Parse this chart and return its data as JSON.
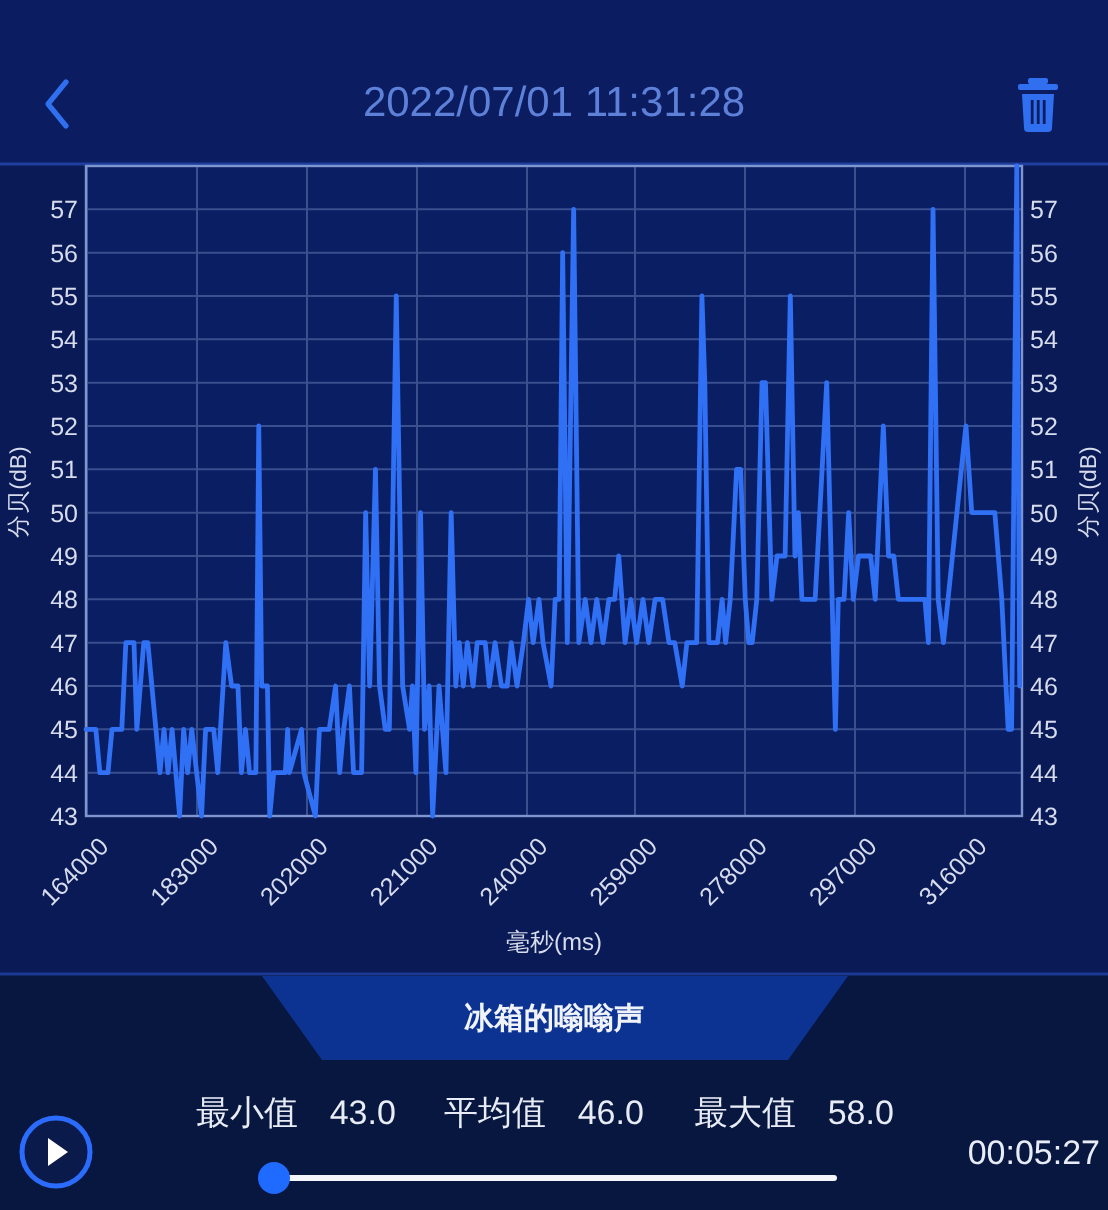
{
  "chart_data": {
    "type": "line",
    "title": "2022/07/01 11:31:28",
    "subtitle": "冰箱的嗡嗡声",
    "xlabel": "毫秒(ms)",
    "ylabel": "分贝(dB)",
    "y2label": "分贝(dB)",
    "x": [
      164000,
      165700,
      166400,
      167800,
      168500,
      170200,
      170900,
      172300,
      172800,
      174000,
      174700,
      176100,
      176800,
      177500,
      178200,
      178900,
      180200,
      180900,
      181600,
      182300,
      184000,
      184700,
      186100,
      186800,
      188200,
      189200,
      190300,
      190900,
      191600,
      192300,
      193400,
      193900,
      194400,
      195400,
      195800,
      196500,
      198500,
      198900,
      199200,
      201300,
      201700,
      203700,
      204400,
      206100,
      207200,
      207900,
      208600,
      209600,
      210300,
      211700,
      212400,
      213100,
      214100,
      214800,
      215800,
      216500,
      217700,
      218800,
      220000,
      220500,
      221100,
      221900,
      222600,
      223400,
      224000,
      225100,
      226300,
      227200,
      228000,
      228600,
      229300,
      230000,
      231000,
      231700,
      233100,
      233800,
      234800,
      235900,
      236900,
      237600,
      238600,
      239700,
      240600,
      241400,
      242400,
      243100,
      244500,
      245200,
      245900,
      246500,
      247300,
      248400,
      249300,
      250400,
      251400,
      252400,
      253500,
      254500,
      255500,
      256200,
      257300,
      258300,
      259300,
      260400,
      261400,
      262500,
      263800,
      264900,
      265900,
      267200,
      268000,
      269700,
      270600,
      271100,
      271800,
      273300,
      274100,
      274700,
      275500,
      276600,
      277300,
      278100,
      278700,
      279300,
      280100,
      281000,
      281600,
      282700,
      283600,
      285000,
      285900,
      286700,
      287300,
      287900,
      290200,
      292200,
      293700,
      294200,
      295200,
      296000,
      296800,
      297700,
      299800,
      300600,
      302000,
      302900,
      303800,
      304600,
      308100,
      309200,
      309800,
      310600,
      311500,
      312400,
      313200,
      315500,
      316300,
      317300,
      321300,
      322500,
      323600,
      324200,
      325100,
      325600
    ],
    "series": [
      {
        "color": "#3070f5",
        "values": [
          45,
          45,
          44,
          44,
          45,
          45,
          47,
          47,
          45,
          47,
          47,
          45,
          44,
          45,
          44,
          45,
          43,
          45,
          44,
          45,
          43,
          45,
          45,
          44,
          47,
          46,
          46,
          44,
          45,
          44,
          44,
          52,
          46,
          46,
          43,
          44,
          44,
          45,
          44,
          45,
          44,
          43,
          45,
          45,
          46,
          44,
          45,
          46,
          44,
          44,
          50,
          46,
          51,
          46,
          45,
          45,
          55,
          46,
          45,
          46,
          44,
          50,
          45,
          46,
          43,
          46,
          44,
          50,
          46,
          47,
          46,
          47,
          46,
          47,
          47,
          46,
          47,
          46,
          46,
          47,
          46,
          47,
          48,
          47,
          48,
          47,
          46,
          48,
          48,
          56,
          47,
          57,
          47,
          48,
          47,
          48,
          47,
          48,
          48,
          49,
          47,
          48,
          47,
          48,
          47,
          48,
          48,
          47,
          47,
          46,
          47,
          47,
          55,
          53,
          47,
          47,
          48,
          47,
          48,
          51,
          51,
          48,
          47,
          47,
          48,
          53,
          53,
          48,
          49,
          49,
          55,
          49,
          50,
          48,
          48,
          53,
          45,
          48,
          48,
          50,
          48,
          49,
          49,
          48,
          52,
          49,
          49,
          48,
          48,
          48,
          47,
          57,
          48,
          47,
          48,
          51,
          52,
          50,
          50,
          48,
          45,
          45,
          58,
          46
        ]
      }
    ],
    "xlim": [
      164000,
      326000
    ],
    "xticks": [
      164000,
      183000,
      202000,
      221000,
      240000,
      259000,
      278000,
      297000,
      316000
    ],
    "ylim": [
      43,
      58
    ],
    "yticks": [
      43,
      44,
      45,
      46,
      47,
      48,
      49,
      50,
      51,
      52,
      53,
      54,
      55,
      56,
      57
    ],
    "y2lim": [
      43,
      58
    ],
    "y2ticks": [
      43,
      44,
      45,
      46,
      47,
      48,
      49,
      50,
      51,
      52,
      53,
      54,
      55,
      56,
      57
    ],
    "grid": true,
    "annotations": [
      "最小值 43.0",
      "平均值 46.0",
      "最大值 58.0",
      "00:05:27"
    ]
  }
}
